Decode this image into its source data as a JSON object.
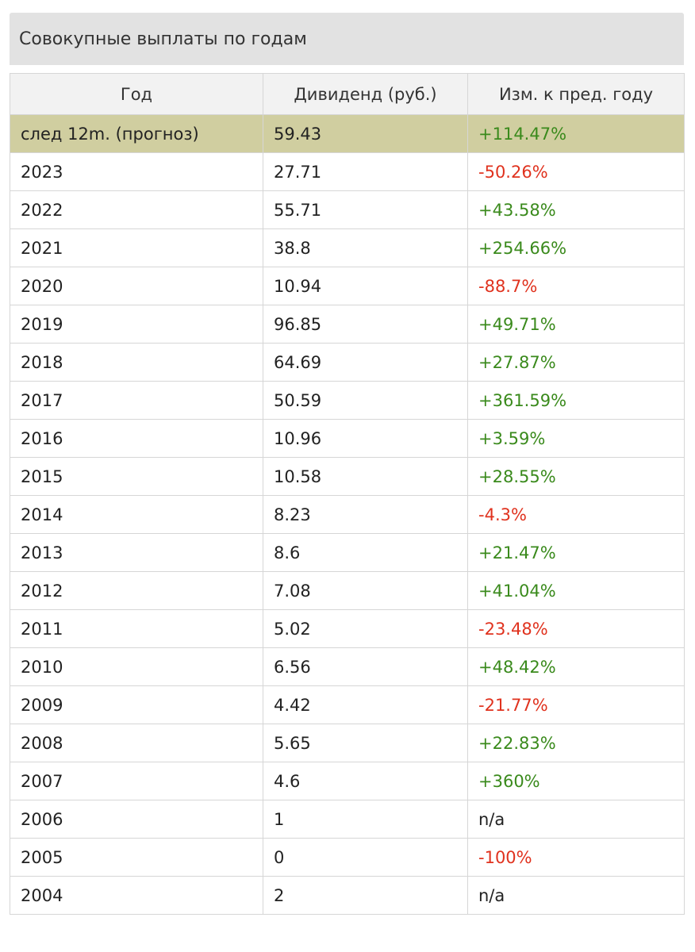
{
  "title": "Совокупные выплаты по годам",
  "columns": [
    "Год",
    "Дивиденд (руб.)",
    "Изм. к пред. году"
  ],
  "rows": [
    {
      "year": "след 12m. (прогноз)",
      "dividend": "59.43",
      "change": "+114.47%",
      "trend": "pos",
      "highlight": true
    },
    {
      "year": "2023",
      "dividend": "27.71",
      "change": "-50.26%",
      "trend": "neg"
    },
    {
      "year": "2022",
      "dividend": "55.71",
      "change": "+43.58%",
      "trend": "pos"
    },
    {
      "year": "2021",
      "dividend": "38.8",
      "change": "+254.66%",
      "trend": "pos"
    },
    {
      "year": "2020",
      "dividend": "10.94",
      "change": "-88.7%",
      "trend": "neg"
    },
    {
      "year": "2019",
      "dividend": "96.85",
      "change": "+49.71%",
      "trend": "pos"
    },
    {
      "year": "2018",
      "dividend": "64.69",
      "change": "+27.87%",
      "trend": "pos"
    },
    {
      "year": "2017",
      "dividend": "50.59",
      "change": "+361.59%",
      "trend": "pos"
    },
    {
      "year": "2016",
      "dividend": "10.96",
      "change": "+3.59%",
      "trend": "pos"
    },
    {
      "year": "2015",
      "dividend": "10.58",
      "change": "+28.55%",
      "trend": "pos"
    },
    {
      "year": "2014",
      "dividend": "8.23",
      "change": "-4.3%",
      "trend": "neg"
    },
    {
      "year": "2013",
      "dividend": "8.6",
      "change": "+21.47%",
      "trend": "pos"
    },
    {
      "year": "2012",
      "dividend": "7.08",
      "change": "+41.04%",
      "trend": "pos"
    },
    {
      "year": "2011",
      "dividend": "5.02",
      "change": "-23.48%",
      "trend": "neg"
    },
    {
      "year": "2010",
      "dividend": "6.56",
      "change": "+48.42%",
      "trend": "pos"
    },
    {
      "year": "2009",
      "dividend": "4.42",
      "change": "-21.77%",
      "trend": "neg"
    },
    {
      "year": "2008",
      "dividend": "5.65",
      "change": "+22.83%",
      "trend": "pos"
    },
    {
      "year": "2007",
      "dividend": "4.6",
      "change": "+360%",
      "trend": "pos"
    },
    {
      "year": "2006",
      "dividend": "1",
      "change": "n/a",
      "trend": "na"
    },
    {
      "year": "2005",
      "dividend": "0",
      "change": "-100%",
      "trend": "neg"
    },
    {
      "year": "2004",
      "dividend": "2",
      "change": "n/a",
      "trend": "na"
    }
  ],
  "colors": {
    "positive": "#3a8a1c",
    "negative": "#e0321e",
    "forecast_row": "#d0cea0",
    "header_bg": "#e2e2e2"
  }
}
